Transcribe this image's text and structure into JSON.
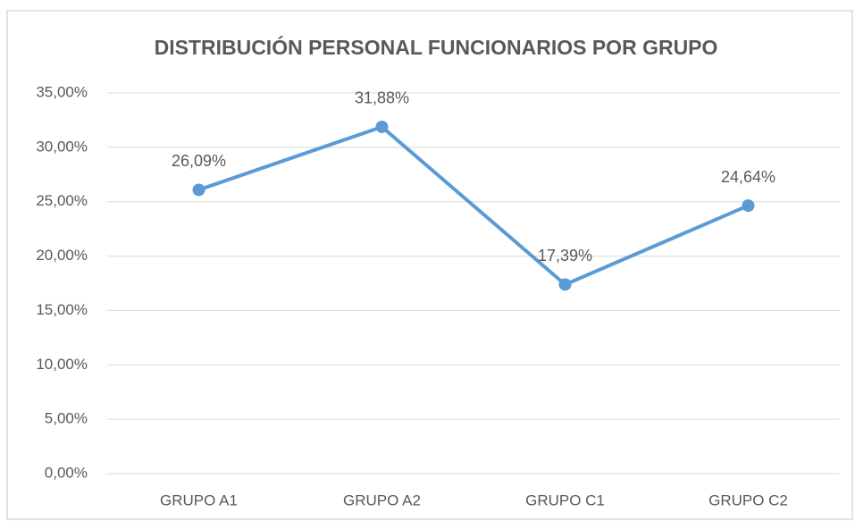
{
  "chart_data": {
    "type": "line",
    "title": "DISTRIBUCIÓN PERSONAL FUNCIONARIOS POR GRUPO",
    "categories": [
      "GRUPO A1",
      "GRUPO A2",
      "GRUPO C1",
      "GRUPO C2"
    ],
    "values": [
      26.09,
      31.88,
      17.39,
      24.64
    ],
    "value_labels": [
      "26,09%",
      "31,88%",
      "17,39%",
      "24,64%"
    ],
    "color": "#5b9bd5",
    "ylim": [
      0,
      35
    ],
    "yticks": [
      {
        "value": 0,
        "label": "0,00%"
      },
      {
        "value": 5,
        "label": "5,00%"
      },
      {
        "value": 10,
        "label": "10,00%"
      },
      {
        "value": 15,
        "label": "15,00%"
      },
      {
        "value": 20,
        "label": "20,00%"
      },
      {
        "value": 25,
        "label": "25,00%"
      },
      {
        "value": 30,
        "label": "30,00%"
      },
      {
        "value": 35,
        "label": "35,00%"
      }
    ],
    "grid": true
  }
}
